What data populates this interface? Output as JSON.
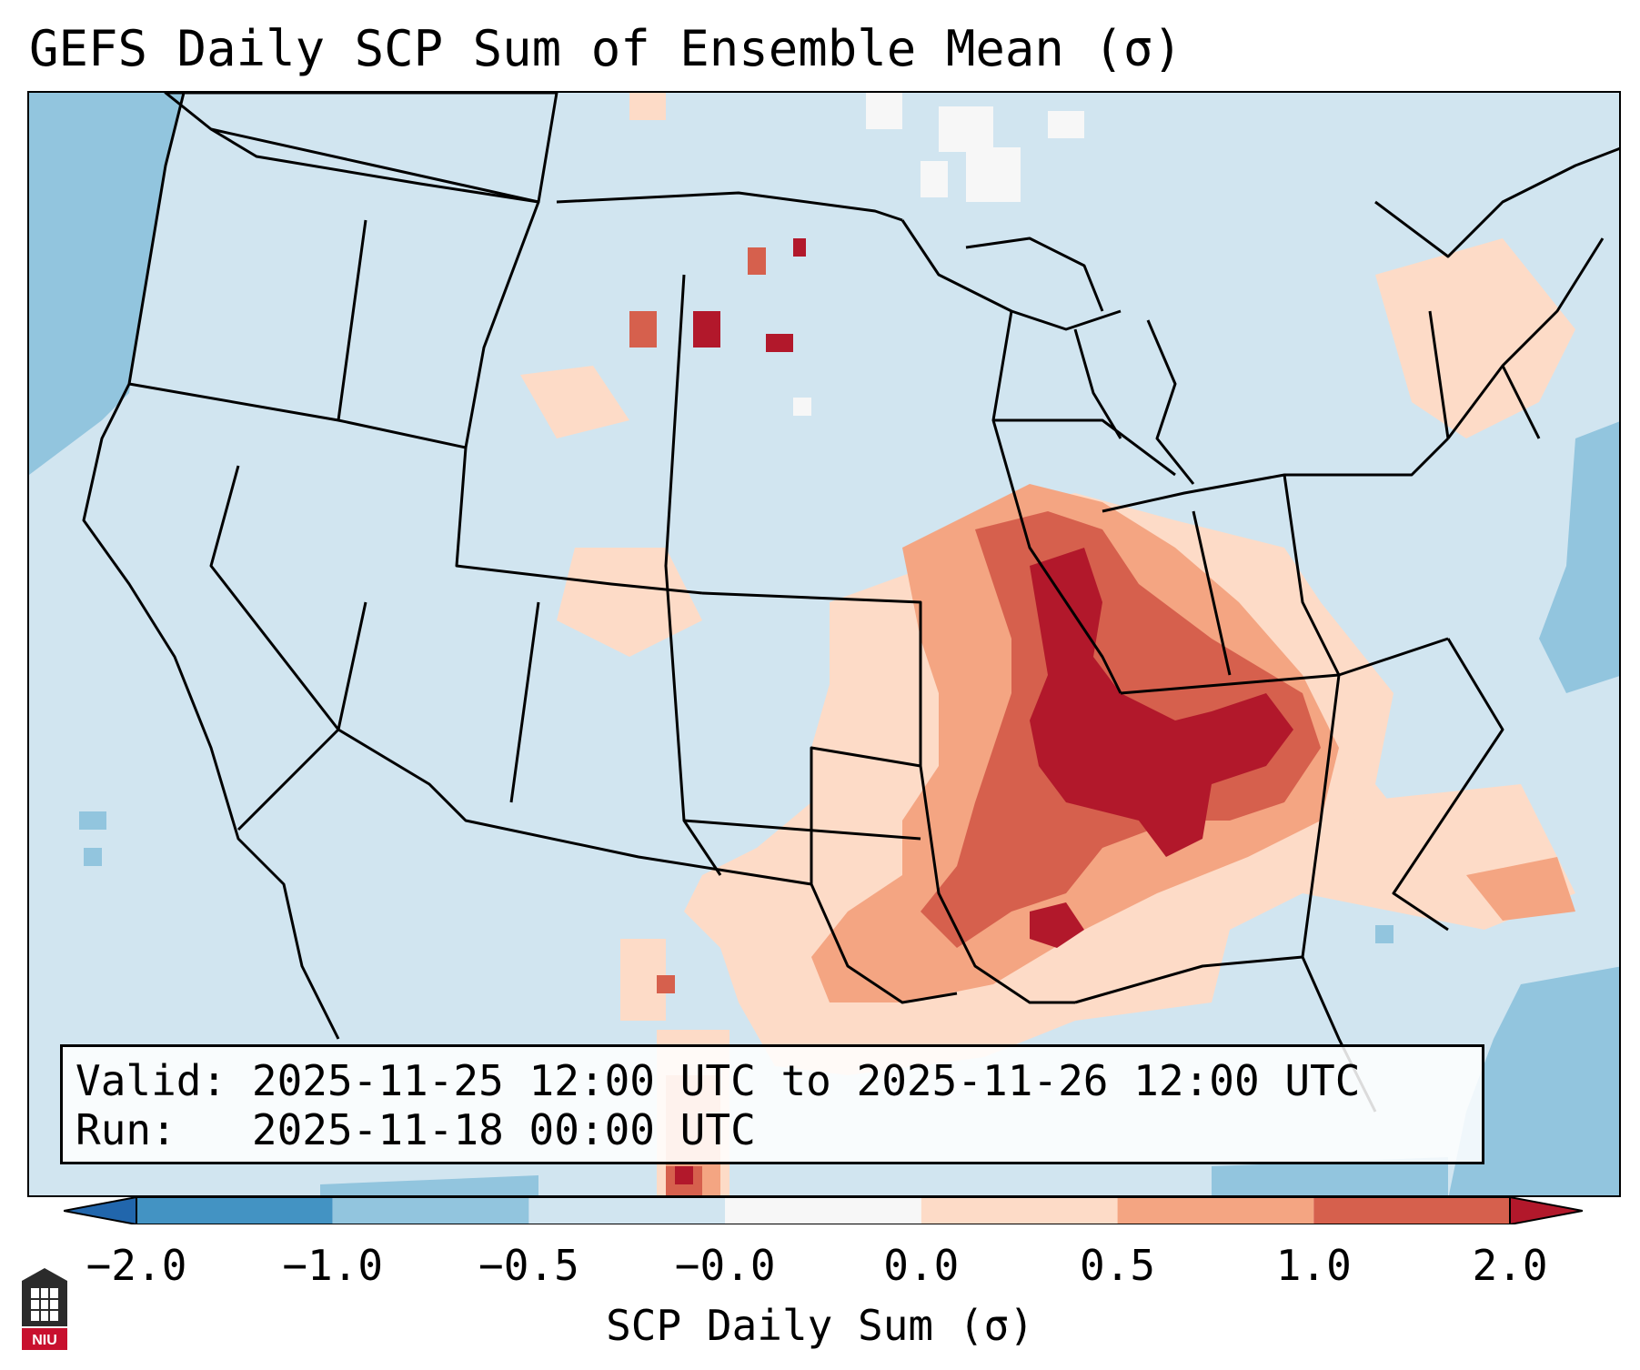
{
  "title": "GEFS Daily SCP Sum of Ensemble Mean (σ)",
  "info": {
    "valid_label": "Valid:",
    "valid_value": "2025-11-25 12:00 UTC to 2025-11-26 12:00 UTC",
    "run_label": "Run:",
    "run_value": "2025-11-18 00:00 UTC"
  },
  "colorbar": {
    "title": "SCP Daily Sum (σ)",
    "ticks": [
      "−2.0",
      "−1.0",
      "−0.5",
      "−0.0",
      "0.0",
      "0.5",
      "1.0",
      "2.0"
    ],
    "colors": [
      "#4393c3",
      "#92c5de",
      "#d1e5f0",
      "#f7f7f7",
      "#fddbc7",
      "#f4a582",
      "#d6604d",
      "#b2182b"
    ],
    "extend": "both"
  },
  "logo_text": "NIU",
  "map_colors": {
    "background": "#d1e5f0",
    "ocean_cool": "#92c5de",
    "light_warm": "#fddbc7",
    "mid_warm": "#f4a582",
    "strong_warm": "#d6604d",
    "max_warm": "#b2182b",
    "outline": "#000000"
  }
}
